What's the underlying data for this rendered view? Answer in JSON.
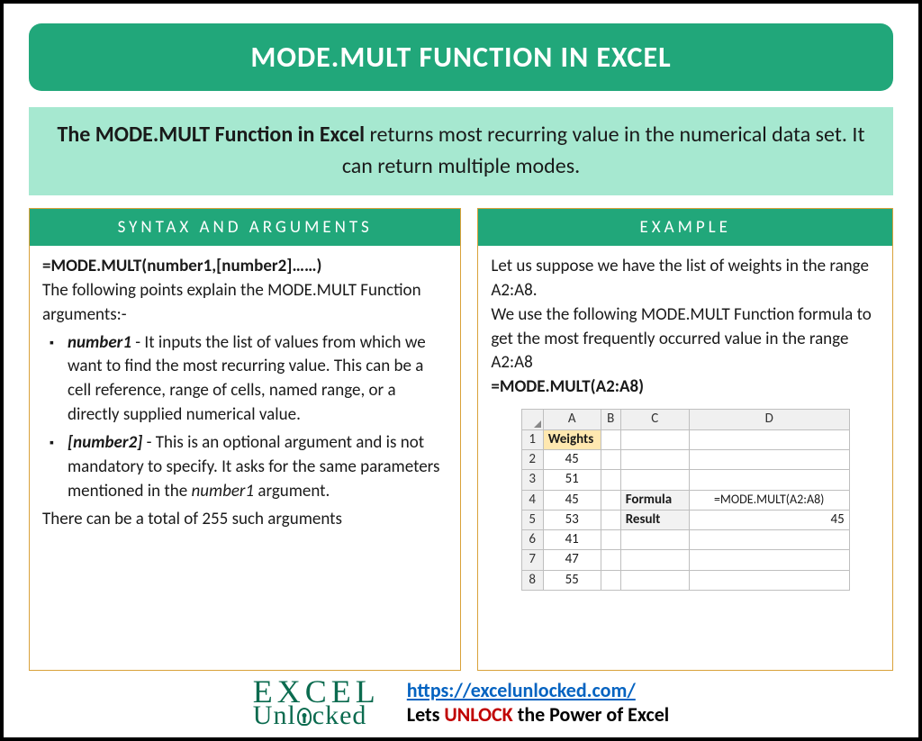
{
  "colors": {
    "primary_green": "#21a77a",
    "light_green": "#a6e8d0",
    "panel_border": "#d9a23a",
    "logo_green": "#0b6b4f",
    "link_blue": "#0563c1",
    "unlock_red": "#c00000",
    "page_border": "#000000",
    "excel_header_bg": "#f0f0f0",
    "excel_border": "#bfbfbf",
    "excel_highlight": "#ffe8b0",
    "excel_label_bg": "#f2f2f2"
  },
  "title": "MODE.MULT FUNCTION IN EXCEL",
  "description": {
    "bold_part": "The MODE.MULT Function in Excel",
    "rest": " returns most recurring value in the numerical data set. It can return multiple modes."
  },
  "syntax_panel": {
    "header": "SYNTAX AND ARGUMENTS",
    "formula": "=MODE.MULT(number1,[number2]……)",
    "intro": "The following points explain the MODE.MULT Function arguments:-",
    "args": [
      {
        "name": "number1",
        "desc": " - It inputs the list of values from which we want to find the most recurring value. This can be a cell reference, range of cells, named range, or a directly supplied numerical value."
      },
      {
        "name": "[number2]",
        "desc_before": " - This is an optional argument and is not mandatory to specify. It asks for the same parameters mentioned in the ",
        "italic_ref": "number1",
        "desc_after": " argument."
      }
    ],
    "outro": "There can be a total of 255 such arguments"
  },
  "example_panel": {
    "header": "EXAMPLE",
    "line1": "Let us suppose we have the list of weights in the range A2:A8.",
    "line2": "We use the following MODE.MULT Function formula to get the most frequently occurred value in the range A2:A8",
    "formula": "=MODE.MULT(A2:A8)",
    "excel": {
      "columns": [
        "A",
        "B",
        "C",
        "D"
      ],
      "rows": [
        1,
        2,
        3,
        4,
        5,
        6,
        7,
        8
      ],
      "a_header": "Weights",
      "a_values": [
        45,
        51,
        45,
        53,
        41,
        47,
        55
      ],
      "formula_label": "Formula",
      "formula_value": "=MODE.MULT(A2:A8)",
      "result_label": "Result",
      "result_value": 45
    }
  },
  "footer": {
    "logo_top": "EXCEL",
    "logo_bottom_pre": "Unl",
    "logo_bottom_post": "cked",
    "url": "https://excelunlocked.com/",
    "tagline_pre": "Lets ",
    "tagline_unlock": "UNLOCK",
    "tagline_post": " the Power of Excel"
  }
}
